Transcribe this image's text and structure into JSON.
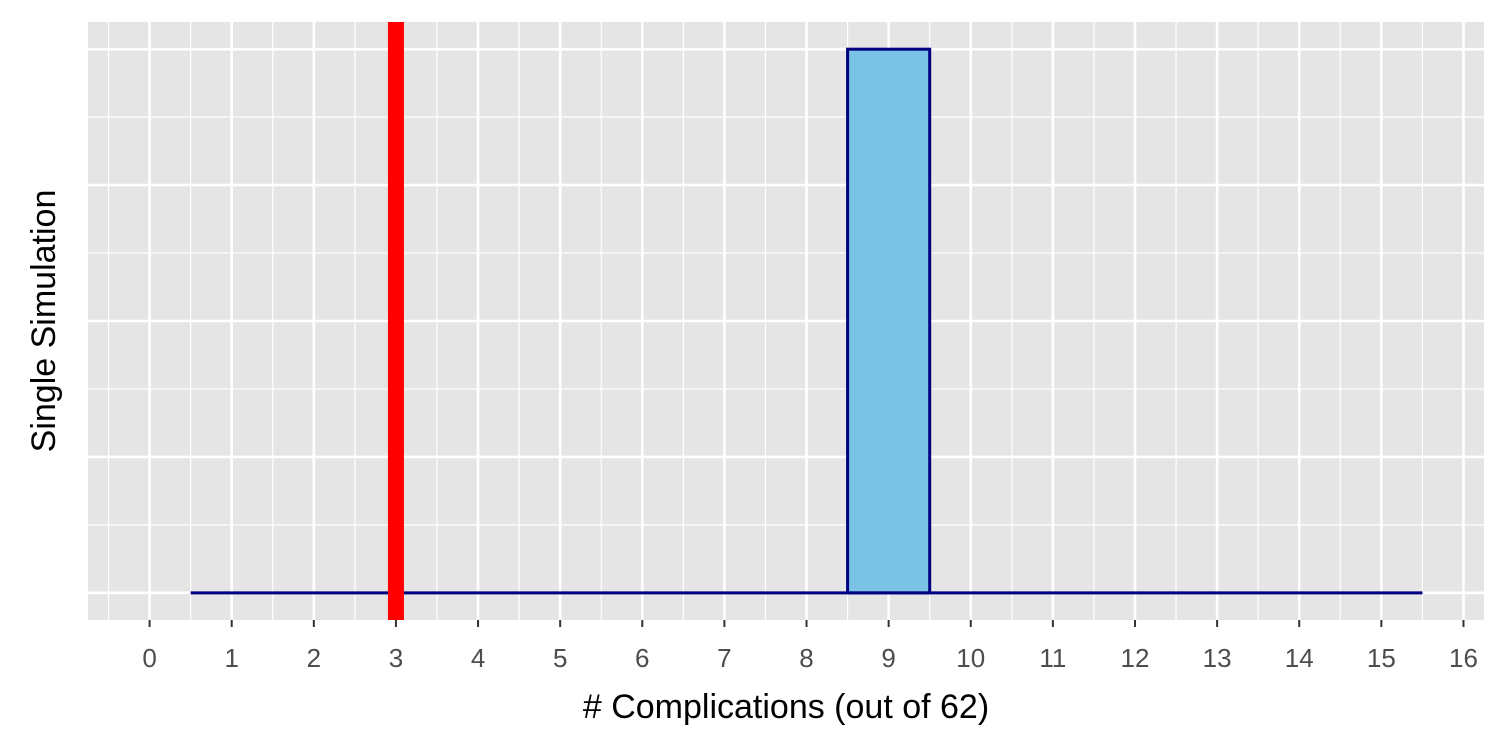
{
  "chart_data": {
    "type": "bar",
    "xlabel": "# Complications (out of 62)",
    "ylabel": "Single Simulation",
    "x_ticks": [
      "0",
      "1",
      "2",
      "3",
      "4",
      "5",
      "6",
      "7",
      "8",
      "9",
      "10",
      "11",
      "12",
      "13",
      "14",
      "15",
      "16"
    ],
    "xlim": [
      -0.75,
      16.25
    ],
    "ylim": [
      -0.05,
      1.05
    ],
    "bin_range": [
      1,
      15
    ],
    "bars": [
      {
        "x": 9,
        "value": 1
      }
    ],
    "reference_line": {
      "x": 3,
      "color": "#ff0000"
    },
    "grid": true,
    "legend": "none",
    "colors": {
      "panel_background": "#e5e5e5",
      "grid": "#ffffff",
      "bar_fill": "#7bc3e6",
      "bar_outline": "#000080",
      "reference_line": "#ff0000"
    }
  }
}
